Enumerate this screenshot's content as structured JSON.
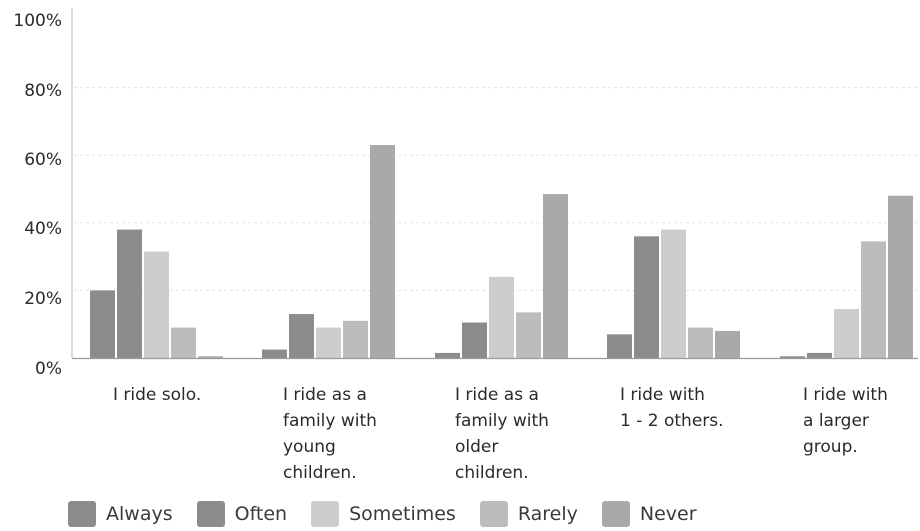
{
  "chart_data": {
    "type": "bar",
    "title": "",
    "xlabel": "",
    "ylabel": "",
    "ylim": [
      0,
      100
    ],
    "yticks": [
      "0%",
      "20%",
      "40%",
      "60%",
      "80%",
      "100%"
    ],
    "categories": [
      [
        "I ride solo."
      ],
      [
        "I ride as a",
        "family with",
        "young",
        "children."
      ],
      [
        "I ride as a",
        "family with",
        "older",
        "children."
      ],
      [
        "I ride with",
        "1 - 2 others."
      ],
      [
        "I ride with",
        "a larger",
        "group."
      ]
    ],
    "series": [
      {
        "name": "Always",
        "color": "#8c8c8c",
        "values": [
          20,
          2.5,
          1.5,
          7,
          0.5
        ]
      },
      {
        "name": "Often",
        "color": "#8c8c8c",
        "values": [
          38,
          13,
          10.5,
          36,
          1.5
        ]
      },
      {
        "name": "Sometimes",
        "color": "#cdcdcd",
        "values": [
          31.5,
          9,
          24,
          38,
          14.5
        ]
      },
      {
        "name": "Rarely",
        "color": "#bcbcbc",
        "values": [
          9,
          11,
          13.5,
          9,
          34.5
        ]
      },
      {
        "name": "Never",
        "color": "#a9a9a9",
        "values": [
          0.5,
          63,
          48.5,
          8,
          48
        ]
      }
    ],
    "grid": true,
    "legend_position": "bottom"
  }
}
